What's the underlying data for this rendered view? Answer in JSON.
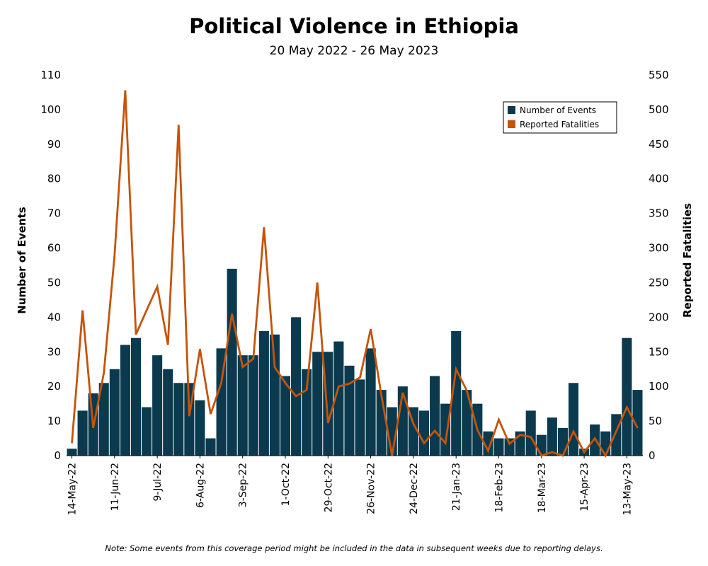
{
  "chart_data": {
    "type": "bar",
    "title": "Political Violence in Ethiopia",
    "subtitle": "20 May 2022 - 26 May 2023",
    "ylabel": "Number of Events",
    "y2label": "Reported Fatalities",
    "ylim": [
      0,
      110
    ],
    "y2lim": [
      0,
      550
    ],
    "yticks": [
      0,
      10,
      20,
      30,
      40,
      50,
      60,
      70,
      80,
      90,
      100,
      110
    ],
    "y2ticks": [
      0,
      50,
      100,
      150,
      200,
      250,
      300,
      350,
      400,
      450,
      500,
      550
    ],
    "xtick_labels": [
      {
        "index": 0,
        "label": "14-May-22"
      },
      {
        "index": 4,
        "label": "11-Jun-22"
      },
      {
        "index": 8,
        "label": "9-Jul-22"
      },
      {
        "index": 12,
        "label": "6-Aug-22"
      },
      {
        "index": 16,
        "label": "3-Sep-22"
      },
      {
        "index": 20,
        "label": "1-Oct-22"
      },
      {
        "index": 24,
        "label": "29-Oct-22"
      },
      {
        "index": 28,
        "label": "26-Nov-22"
      },
      {
        "index": 32,
        "label": "24-Dec-22"
      },
      {
        "index": 36,
        "label": "21-Jan-23"
      },
      {
        "index": 40,
        "label": "18-Feb-23"
      },
      {
        "index": 44,
        "label": "18-Mar-23"
      },
      {
        "index": 48,
        "label": "15-Apr-23"
      },
      {
        "index": 52,
        "label": "13-May-23"
      }
    ],
    "legend_position": "top-right",
    "series": [
      {
        "name": "Number of Events",
        "type": "bar",
        "axis": "left",
        "color": "#0b3a4e",
        "values": [
          2,
          13,
          18,
          21,
          25,
          32,
          34,
          14,
          29,
          25,
          21,
          21,
          16,
          5,
          31,
          54,
          29,
          29,
          36,
          35,
          23,
          40,
          25,
          30,
          30,
          33,
          26,
          22,
          31,
          19,
          14,
          20,
          14,
          13,
          23,
          15,
          36,
          19,
          15,
          7,
          5,
          5,
          7,
          13,
          6,
          11,
          8,
          21,
          2,
          9,
          7,
          12,
          34,
          19
        ]
      },
      {
        "name": "Reported Fatalities",
        "type": "line",
        "axis": "right",
        "color": "#c4540a",
        "values": [
          18,
          210,
          40,
          120,
          290,
          528,
          175,
          210,
          244,
          160,
          478,
          57,
          154,
          60,
          105,
          205,
          128,
          140,
          330,
          128,
          105,
          86,
          95,
          250,
          47,
          100,
          104,
          113,
          183,
          87,
          0,
          91,
          46,
          18,
          36,
          18,
          125,
          94,
          37,
          7,
          52,
          17,
          30,
          27,
          0,
          5,
          0,
          35,
          5,
          25,
          0,
          35,
          70,
          40
        ]
      }
    ]
  },
  "footer": {
    "note": "Note: Some events from this coverage period might be included in the data in subsequent weeks due to reporting delays."
  }
}
